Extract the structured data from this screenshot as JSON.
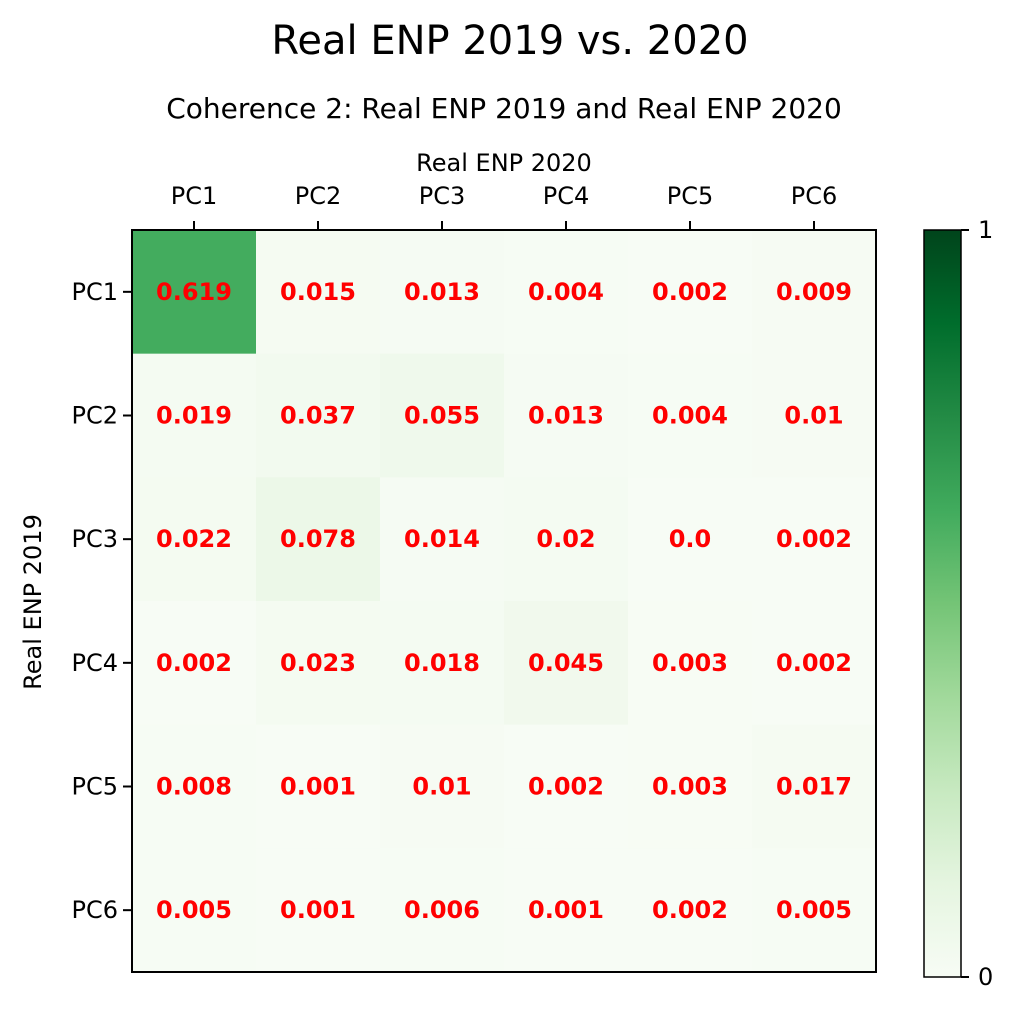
{
  "figure": {
    "suptitle": "Real ENP 2019 vs. 2020",
    "subtitle": "Coherence 2: Real ENP 2019 and Real ENP 2020"
  },
  "chart_data": {
    "type": "heatmap",
    "title": "Coherence 2: Real ENP 2019 and Real ENP 2020",
    "xlabel": "Real ENP 2020",
    "ylabel": "Real ENP 2019",
    "x_categories": [
      "PC1",
      "PC2",
      "PC3",
      "PC4",
      "PC5",
      "PC6"
    ],
    "y_categories": [
      "PC1",
      "PC2",
      "PC3",
      "PC4",
      "PC5",
      "PC6"
    ],
    "x_axis_position": "top",
    "values": [
      [
        0.619,
        0.015,
        0.013,
        0.004,
        0.002,
        0.009
      ],
      [
        0.019,
        0.037,
        0.055,
        0.013,
        0.004,
        0.01
      ],
      [
        0.022,
        0.078,
        0.014,
        0.02,
        0.0,
        0.002
      ],
      [
        0.002,
        0.023,
        0.018,
        0.045,
        0.003,
        0.002
      ],
      [
        0.008,
        0.001,
        0.01,
        0.002,
        0.003,
        0.017
      ],
      [
        0.005,
        0.001,
        0.006,
        0.001,
        0.002,
        0.005
      ]
    ],
    "value_labels": [
      [
        "0.619",
        "0.015",
        "0.013",
        "0.004",
        "0.002",
        "0.009"
      ],
      [
        "0.019",
        "0.037",
        "0.055",
        "0.013",
        "0.004",
        "0.01"
      ],
      [
        "0.022",
        "0.078",
        "0.014",
        "0.02",
        "0.0",
        "0.002"
      ],
      [
        "0.002",
        "0.023",
        "0.018",
        "0.045",
        "0.003",
        "0.002"
      ],
      [
        "0.008",
        "0.001",
        "0.01",
        "0.002",
        "0.003",
        "0.017"
      ],
      [
        "0.005",
        "0.001",
        "0.006",
        "0.001",
        "0.002",
        "0.005"
      ]
    ],
    "value_range": [
      0,
      1
    ],
    "colormap": "Greens",
    "colormap_stops": [
      "#f7fcf5",
      "#e5f5e0",
      "#c7e9c0",
      "#a1d99b",
      "#74c476",
      "#41ab5d",
      "#238b45",
      "#006d2c",
      "#00441b"
    ],
    "label_color": "#ff0000",
    "colorbar": {
      "ticks": [
        0,
        1
      ],
      "tick_labels": [
        "0",
        "1"
      ]
    }
  }
}
